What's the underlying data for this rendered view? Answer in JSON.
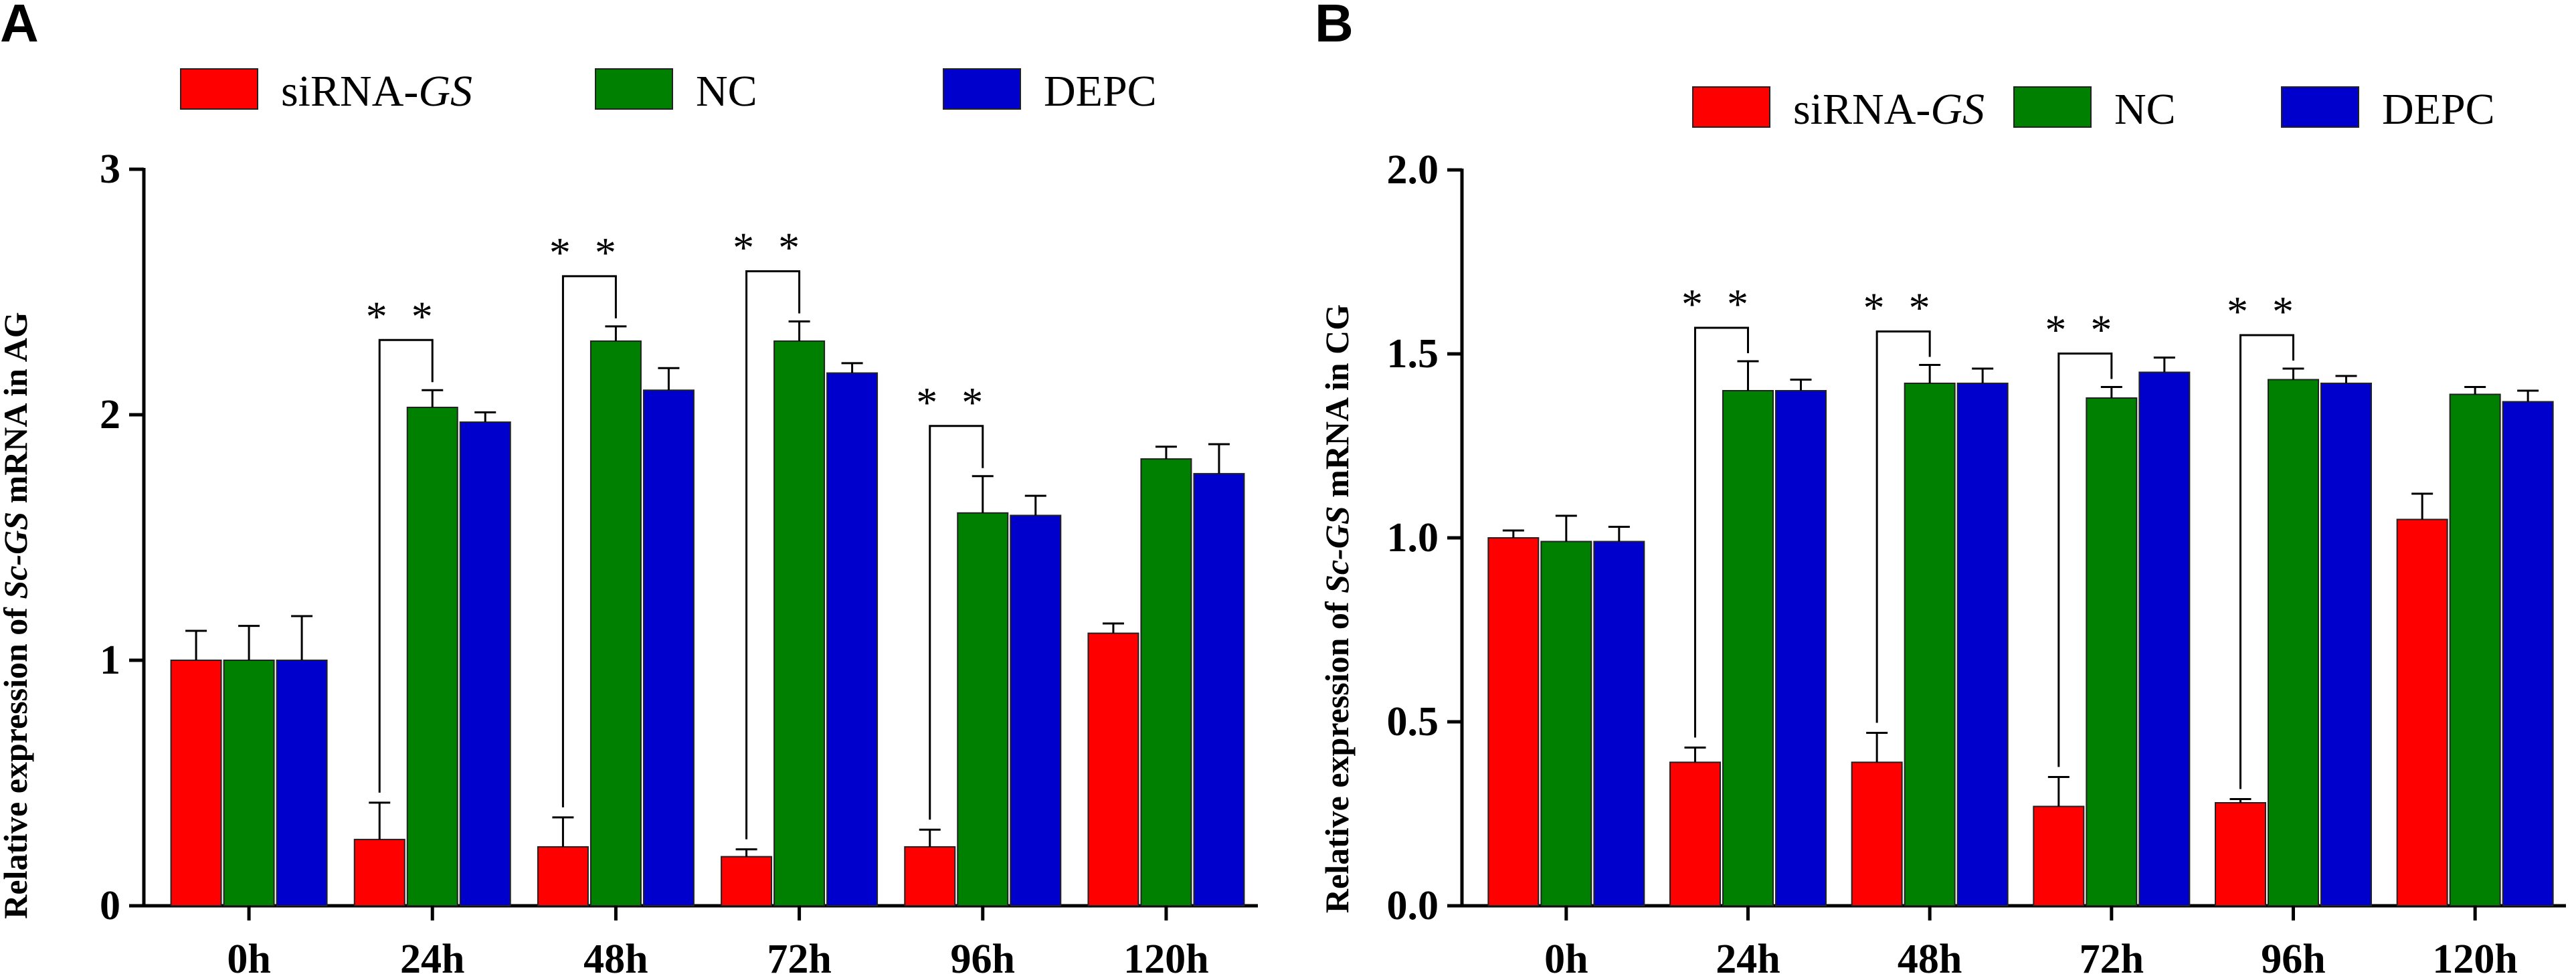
{
  "chart_data": [
    {
      "type": "bar",
      "panel": "A",
      "ylabel_parts": [
        "Relative expression of ",
        "Sc-GS",
        " mRNA in AG"
      ],
      "categories": [
        "0h",
        "24h",
        "48h",
        "72h",
        "96h",
        "120h"
      ],
      "yticks": [
        "0",
        "1",
        "2",
        "3"
      ],
      "ylim": [
        0,
        3
      ],
      "series": [
        {
          "name": "siRNA-",
          "name_italic": "GS",
          "color": "#ff0000",
          "values": [
            1.0,
            0.27,
            0.24,
            0.2,
            0.24,
            1.11
          ],
          "errors": [
            0.12,
            0.15,
            0.12,
            0.03,
            0.07,
            0.04
          ]
        },
        {
          "name": "NC",
          "name_italic": "",
          "color": "#008000",
          "values": [
            1.0,
            2.03,
            2.3,
            2.3,
            1.6,
            1.82
          ],
          "errors": [
            0.14,
            0.07,
            0.06,
            0.08,
            0.15,
            0.05
          ]
        },
        {
          "name": "DEPC",
          "name_italic": "",
          "color": "#0000cc",
          "values": [
            1.0,
            1.97,
            2.1,
            2.17,
            1.59,
            1.76
          ],
          "errors": [
            0.18,
            0.04,
            0.09,
            0.04,
            0.08,
            0.12
          ]
        }
      ],
      "significance": [
        {
          "category": "24h",
          "label": "**"
        },
        {
          "category": "48h",
          "label": "**"
        },
        {
          "category": "72h",
          "label": "**"
        },
        {
          "category": "96h",
          "label": "**"
        }
      ]
    },
    {
      "type": "bar",
      "panel": "B",
      "ylabel_parts": [
        "Relative expression of ",
        "Sc-GS",
        " mRNA in CG"
      ],
      "categories": [
        "0h",
        "24h",
        "48h",
        "72h",
        "96h",
        "120h"
      ],
      "yticks": [
        "0.0",
        "0.5",
        "1.0",
        "1.5",
        "2.0"
      ],
      "ylim": [
        0,
        2
      ],
      "series": [
        {
          "name": "siRNA-",
          "name_italic": "GS",
          "color": "#ff0000",
          "values": [
            1.0,
            0.39,
            0.39,
            0.27,
            0.28,
            1.05
          ],
          "errors": [
            0.02,
            0.04,
            0.08,
            0.08,
            0.01,
            0.07
          ]
        },
        {
          "name": "NC",
          "name_italic": "",
          "color": "#008000",
          "values": [
            0.99,
            1.4,
            1.42,
            1.38,
            1.43,
            1.39
          ],
          "errors": [
            0.07,
            0.08,
            0.05,
            0.03,
            0.03,
            0.02
          ]
        },
        {
          "name": "DEPC",
          "name_italic": "",
          "color": "#0000cc",
          "values": [
            0.99,
            1.4,
            1.42,
            1.45,
            1.42,
            1.37
          ],
          "errors": [
            0.04,
            0.03,
            0.04,
            0.04,
            0.02,
            0.03
          ]
        }
      ],
      "significance": [
        {
          "category": "24h",
          "label": "**"
        },
        {
          "category": "48h",
          "label": "**"
        },
        {
          "category": "72h",
          "label": "**"
        },
        {
          "category": "96h",
          "label": "**"
        }
      ]
    }
  ]
}
